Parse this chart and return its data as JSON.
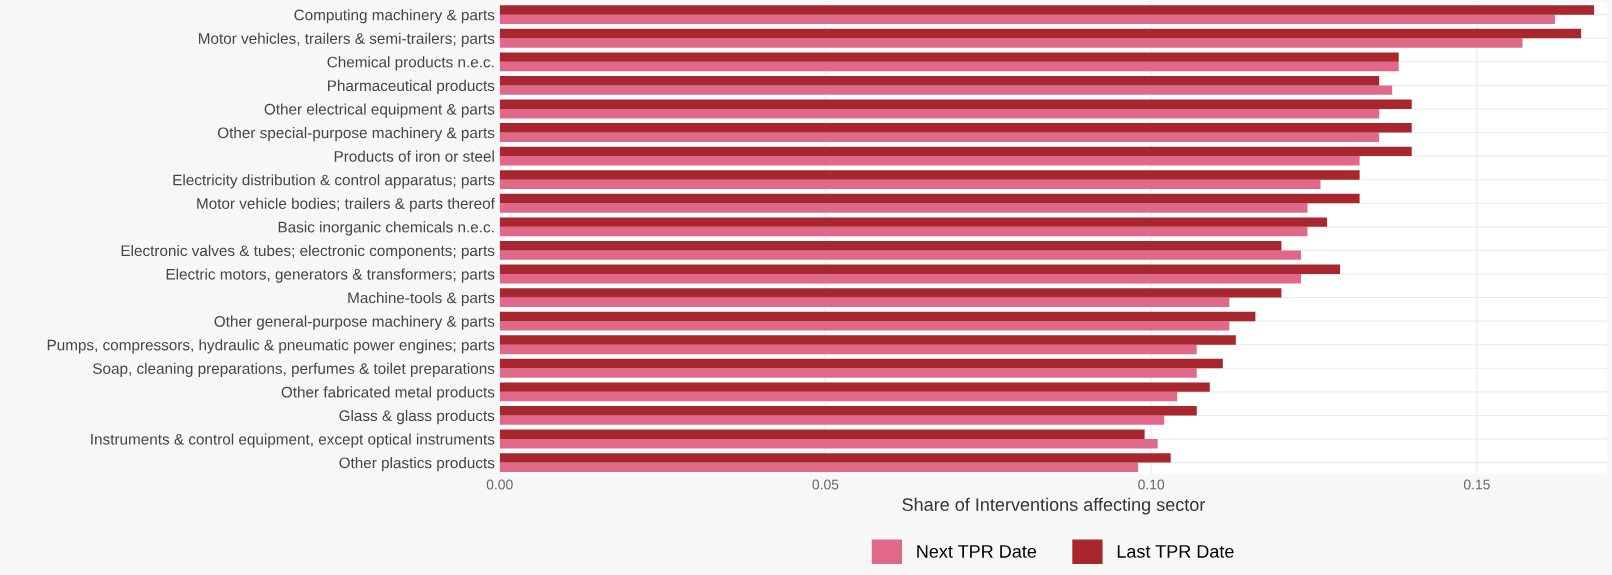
{
  "chart_data": {
    "type": "bar",
    "orientation": "horizontal",
    "xlabel": "Share of Interventions affecting sector",
    "categories": [
      "Computing machinery & parts",
      "Motor vehicles, trailers & semi-trailers; parts",
      "Chemical products n.e.c.",
      "Pharmaceutical products",
      "Other electrical equipment & parts",
      "Other special-purpose machinery & parts",
      "Products of iron or steel",
      "Electricity distribution & control apparatus; parts",
      "Motor vehicle bodies; trailers & parts thereof",
      "Basic inorganic chemicals n.e.c.",
      "Electronic valves & tubes; electronic components; parts",
      "Electric motors, generators & transformers; parts",
      "Machine-tools & parts",
      "Other general-purpose machinery & parts",
      "Pumps, compressors, hydraulic & pneumatic power engines; parts",
      "Soap, cleaning preparations, perfumes & toilet preparations",
      "Other fabricated metal products",
      "Glass & glass products",
      "Instruments & control equipment, except optical instruments",
      "Other plastics products"
    ],
    "series": [
      {
        "name": "Next TPR Date",
        "color": "#e0698a",
        "values": [
          0.162,
          0.157,
          0.138,
          0.137,
          0.135,
          0.135,
          0.132,
          0.126,
          0.124,
          0.124,
          0.123,
          0.123,
          0.112,
          0.112,
          0.107,
          0.107,
          0.104,
          0.102,
          0.101,
          0.098
        ]
      },
      {
        "name": "Last TPR Date",
        "color": "#a8262d",
        "values": [
          0.168,
          0.166,
          0.138,
          0.135,
          0.14,
          0.14,
          0.14,
          0.132,
          0.132,
          0.127,
          0.12,
          0.129,
          0.12,
          0.116,
          0.113,
          0.111,
          0.109,
          0.107,
          0.099,
          0.103
        ]
      }
    ],
    "xlim": [
      0,
      0.17
    ],
    "xticks": [
      {
        "value": 0,
        "label": "0.00"
      },
      {
        "value": 0.05,
        "label": "0.05"
      },
      {
        "value": 0.1,
        "label": "0.10"
      },
      {
        "value": 0.15,
        "label": "0.15"
      }
    ],
    "grid": true,
    "legend": "bottom"
  }
}
